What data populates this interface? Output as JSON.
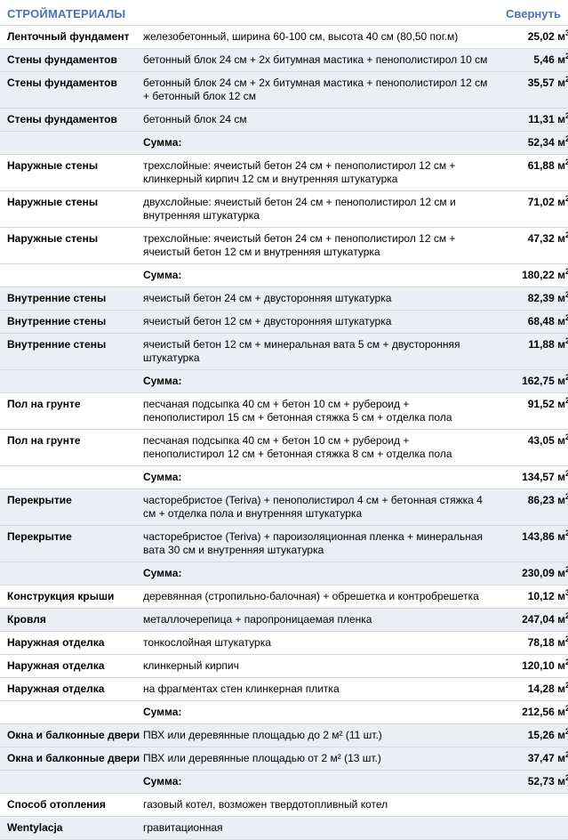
{
  "header": {
    "title": "СТРОЙМАТЕРИАЛЫ",
    "collapse_label": "Свернуть"
  },
  "colors": {
    "accent_blue": "#4a72b5",
    "shaded_row_bg": "#eceef5",
    "divider": "#d8d8d8"
  },
  "table": {
    "rows": [
      {
        "name": "Ленточный фундамент",
        "desc": "железобетонный, ширина 60-100 см, высота 40 см (80,50 пог.м)",
        "value": "25,02 м",
        "value_sup": "3",
        "shaded": false,
        "sum": false
      },
      {
        "name": "Стены фундаментов",
        "desc": "бетонный блок 24 см + 2х битумная мастика + пенополистирол 10 см",
        "value": "5,46 м",
        "value_sup": "2",
        "shaded": true,
        "sum": false
      },
      {
        "name": "Стены фундаментов",
        "desc": "бетонный блок 24 см + 2х битумная мастика + пенополистирол 12 см + бетонный блок 12 см",
        "value": "35,57 м",
        "value_sup": "2",
        "shaded": true,
        "sum": false
      },
      {
        "name": "Стены фундаментов",
        "desc": "бетонный блок 24 см",
        "value": "11,31 м",
        "value_sup": "2",
        "shaded": true,
        "sum": false
      },
      {
        "name": "",
        "desc": "Сумма:",
        "value": "52,34 м",
        "value_sup": "2",
        "shaded": true,
        "sum": true
      },
      {
        "name": "Наружные стены",
        "desc": "трехслойные: ячеистый бетон 24 см + пенополистирол 12 см + клинкерный кирпич 12 см и внутренняя штукатурка",
        "value": "61,88 м",
        "value_sup": "2",
        "shaded": false,
        "sum": false
      },
      {
        "name": "Наружные стены",
        "desc": "двухслойные: ячеистый бетон 24 см + пенополистирол 12 см и внутренняя штукатурка",
        "value": "71,02 м",
        "value_sup": "2",
        "shaded": false,
        "sum": false
      },
      {
        "name": "Наружные стены",
        "desc": "трехслойные: ячеистый бетон 24 см + пенополистирол 12 см + ячеистый бетон 12 см и внутренняя штукатурка",
        "value": "47,32 м",
        "value_sup": "2",
        "shaded": false,
        "sum": false
      },
      {
        "name": "",
        "desc": "Сумма:",
        "value": "180,22 м",
        "value_sup": "2",
        "shaded": false,
        "sum": true
      },
      {
        "name": "Внутренние стены",
        "desc": "ячеистый бетон 24 см + двусторонняя штукатурка",
        "value": "82,39 м",
        "value_sup": "2",
        "shaded": true,
        "sum": false
      },
      {
        "name": "Внутренние стены",
        "desc": "ячеистый бетон 12 см + двусторонняя штукатурка",
        "value": "68,48 м",
        "value_sup": "2",
        "shaded": true,
        "sum": false
      },
      {
        "name": "Внутренние стены",
        "desc": "ячеистый бетон 12 см + минеральная вата 5 см + двусторонняя штукатурка",
        "value": "11,88 м",
        "value_sup": "2",
        "shaded": true,
        "sum": false
      },
      {
        "name": "",
        "desc": "Сумма:",
        "value": "162,75 м",
        "value_sup": "2",
        "shaded": true,
        "sum": true
      },
      {
        "name": "Пол на грунте",
        "desc": "песчаная подсыпка 40 см + бетон 10 см + рубероид + пенополистирол 15 см + бетонная стяжка 5 см + отделка пола",
        "value": "91,52 м",
        "value_sup": "2",
        "shaded": false,
        "sum": false
      },
      {
        "name": "Пол на грунте",
        "desc": "песчаная подсыпка 40 см + бетон 10 см + рубероид + пенополистирол 12 см + бетонная стяжка 8 см + отделка пола",
        "value": "43,05 м",
        "value_sup": "2",
        "shaded": false,
        "sum": false
      },
      {
        "name": "",
        "desc": "Сумма:",
        "value": "134,57 м",
        "value_sup": "2",
        "shaded": false,
        "sum": true
      },
      {
        "name": "Перекрытие",
        "desc": "часторебристое (Teriva) + пенополистирол 4 см + бетонная стяжка 4 см + отделка пола и внутренняя штукатурка",
        "value": "86,23 м",
        "value_sup": "2",
        "shaded": true,
        "sum": false
      },
      {
        "name": "Перекрытие",
        "desc": "часторебристое (Teriva) + пароизоляционная пленка + минеральная вата 30 см и внутренняя штукатурка",
        "value": "143,86 м",
        "value_sup": "2",
        "shaded": true,
        "sum": false
      },
      {
        "name": "",
        "desc": "Сумма:",
        "value": "230,09 м",
        "value_sup": "2",
        "shaded": true,
        "sum": true
      },
      {
        "name": "Конструкция крыши",
        "desc": "деревянная (стропильно-балочная) + обрешетка и контробрешетка",
        "value": "10,12 м",
        "value_sup": "3",
        "shaded": false,
        "sum": false
      },
      {
        "name": "Кровля",
        "desc": "металлочерепица + паропроницаемая пленка",
        "value": "247,04 м",
        "value_sup": "2",
        "shaded": true,
        "sum": false
      },
      {
        "name": "Наружная отделка",
        "desc": "тонкослойная штукатурка",
        "value": "78,18 м",
        "value_sup": "2",
        "shaded": false,
        "sum": false
      },
      {
        "name": "Наружная отделка",
        "desc": "клинкерный кирпич",
        "value": "120,10 м",
        "value_sup": "2",
        "shaded": false,
        "sum": false
      },
      {
        "name": "Наружная отделка",
        "desc": "на фрагментах стен клинкерная плитка",
        "value": "14,28 м",
        "value_sup": "2",
        "shaded": false,
        "sum": false
      },
      {
        "name": "",
        "desc": "Сумма:",
        "value": "212,56 м",
        "value_sup": "2",
        "shaded": false,
        "sum": true
      },
      {
        "name": "Окна и балконные двери",
        "desc": "ПВХ или деревянные площадью до 2 м² (11 шт.)",
        "value": "15,26 м",
        "value_sup": "2",
        "shaded": true,
        "sum": false
      },
      {
        "name": "Окна и балконные двери",
        "desc": "ПВХ или деревянные площадью от 2 м² (13 шт.)",
        "value": "37,47 м",
        "value_sup": "2",
        "shaded": true,
        "sum": false
      },
      {
        "name": "",
        "desc": "Сумма:",
        "value": "52,73 м",
        "value_sup": "2",
        "shaded": true,
        "sum": true
      },
      {
        "name": "Способ отопления",
        "desc": "газовый котел, возможен твердотопливный котел",
        "value": "",
        "value_sup": "",
        "shaded": false,
        "sum": false
      },
      {
        "name": "Wentylacja",
        "desc": "гравитационная",
        "value": "",
        "value_sup": "",
        "shaded": true,
        "sum": false
      }
    ]
  }
}
